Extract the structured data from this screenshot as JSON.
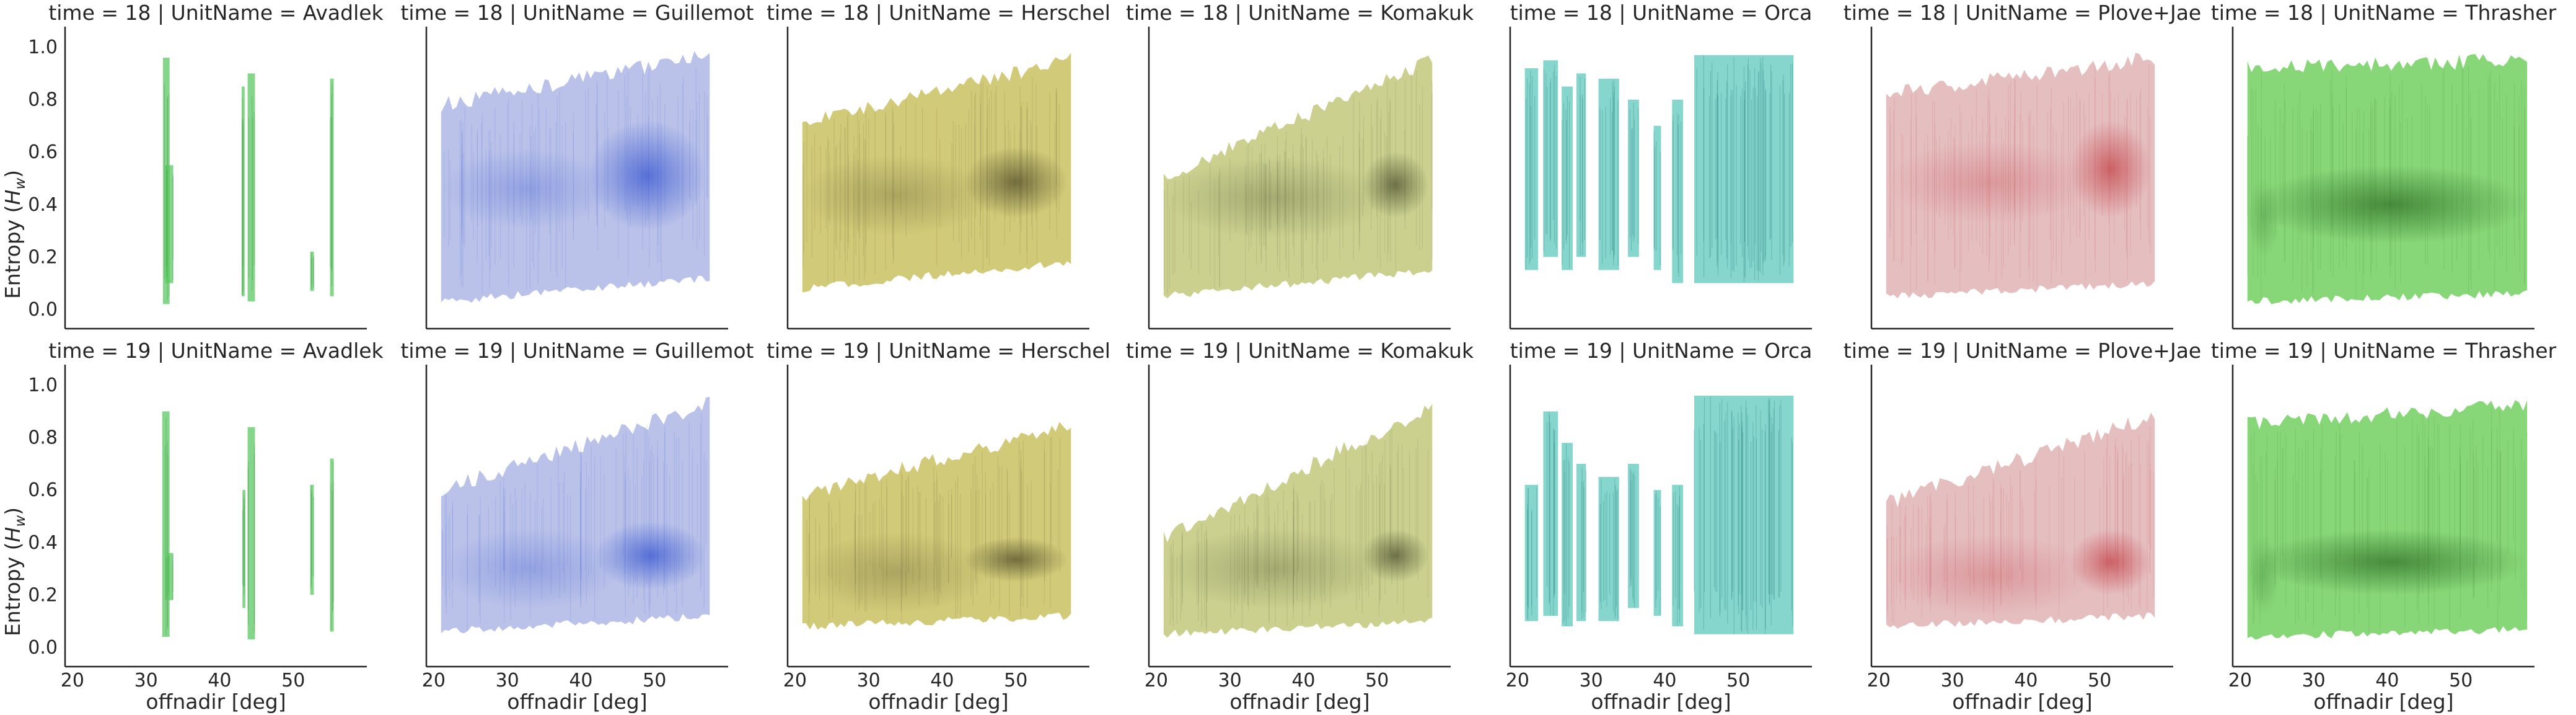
{
  "chart_data": {
    "type": "scatter",
    "layout": "facet-grid",
    "row_variable": "time",
    "col_variable": "UnitName",
    "xlabel": "offnadir [deg]",
    "ylabel_prefix": "Entropy (",
    "ylabel_symbol": "H",
    "ylabel_sub": "w",
    "ylabel_suffix": ")",
    "x_ticks": [
      "20",
      "30",
      "40",
      "50"
    ],
    "y_ticks": [
      "0.0",
      "0.2",
      "0.4",
      "0.6",
      "0.8",
      "1.0"
    ],
    "xlim": [
      19,
      60
    ],
    "ylim": [
      -0.05,
      1.05
    ],
    "grid": false,
    "rows": [
      {
        "time": 18,
        "titles": [
          "time = 18 | UnitName = Avadlek",
          "time = 18 | UnitName = Guillemot",
          "time = 18 | UnitName = Herschel",
          "time = 18 | UnitName = Komakuk",
          "time = 18 | UnitName = Orca",
          "time = 18 | UnitName = Plove+Jae",
          "time = 18 | UnitName = Thrasher"
        ]
      },
      {
        "time": 19,
        "titles": [
          "time = 19 | UnitName = Avadlek",
          "time = 19 | UnitName = Guillemot",
          "time = 19 | UnitName = Herschel",
          "time = 19 | UnitName = Komakuk",
          "time = 19 | UnitName = Orca",
          "time = 19 | UnitName = Plove+Jae",
          "time = 19 | UnitName = Thrasher"
        ]
      }
    ],
    "units": [
      {
        "name": "Avadlek",
        "color": "#5cc863",
        "dark": "#2e8a35",
        "series": [
          {
            "time": 18,
            "bands": [
              [
                32.3,
                33.2,
                0.02,
                0.96
              ],
              [
                32.6,
                33.7,
                0.1,
                0.55
              ],
              [
                43.0,
                43.4,
                0.05,
                0.85
              ],
              [
                43.8,
                44.8,
                0.03,
                0.9
              ],
              [
                52.3,
                52.8,
                0.07,
                0.22
              ],
              [
                55.0,
                55.5,
                0.05,
                0.88
              ]
            ]
          },
          {
            "time": 19,
            "bands": [
              [
                32.2,
                33.2,
                0.04,
                0.9
              ],
              [
                32.8,
                33.7,
                0.18,
                0.36
              ],
              [
                43.1,
                43.5,
                0.15,
                0.6
              ],
              [
                43.8,
                44.8,
                0.03,
                0.84
              ],
              [
                52.3,
                52.8,
                0.2,
                0.62
              ],
              [
                55.0,
                55.5,
                0.06,
                0.72
              ]
            ]
          }
        ]
      },
      {
        "name": "Guillemot",
        "color": "#b4bde7",
        "dark": "#2f4fcf",
        "series": [
          {
            "time": 18,
            "range": [
              21,
              57.5
            ],
            "upper": [
              0.78,
              0.97
            ],
            "lower": [
              0.03,
              0.12
            ],
            "core": [
              41,
              57,
              0.3,
              0.72
            ]
          },
          {
            "time": 19,
            "range": [
              21,
              57.5
            ],
            "upper": [
              0.6,
              0.93
            ],
            "lower": [
              0.06,
              0.12
            ],
            "core": [
              42,
              57,
              0.22,
              0.48
            ]
          }
        ]
      },
      {
        "name": "Herschel",
        "color": "#cdc66d",
        "dark": "#4b4626",
        "series": [
          {
            "time": 18,
            "range": [
              21,
              57.5
            ],
            "upper": [
              0.72,
              0.95
            ],
            "lower": [
              0.08,
              0.18
            ],
            "core": [
              43,
              57,
              0.35,
              0.62
            ]
          },
          {
            "time": 19,
            "range": [
              21,
              57.5
            ],
            "upper": [
              0.58,
              0.85
            ],
            "lower": [
              0.08,
              0.12
            ],
            "core": [
              43,
              57,
              0.25,
              0.42
            ]
          }
        ]
      },
      {
        "name": "Komakuk",
        "color": "#c7cc86",
        "dark": "#444a2a",
        "series": [
          {
            "time": 18,
            "range": [
              21,
              57.5
            ],
            "upper": [
              0.5,
              0.95
            ],
            "lower": [
              0.05,
              0.15
            ],
            "core": [
              48,
              57,
              0.35,
              0.6
            ]
          },
          {
            "time": 19,
            "range": [
              21,
              57.5
            ],
            "upper": [
              0.42,
              0.92
            ],
            "lower": [
              0.05,
              0.1
            ],
            "core": [
              48,
              57,
              0.25,
              0.45
            ]
          }
        ]
      },
      {
        "name": "Orca",
        "color": "#5fc8be",
        "dark": "#1f7d75",
        "series": [
          {
            "time": 18,
            "bands": [
              [
                21,
                22.8,
                0.15,
                0.92
              ],
              [
                23.5,
                25.5,
                0.2,
                0.95
              ],
              [
                26.0,
                27.5,
                0.15,
                0.85
              ],
              [
                28.0,
                29.3,
                0.2,
                0.9
              ],
              [
                31.0,
                33.8,
                0.15,
                0.88
              ],
              [
                35.0,
                36.5,
                0.2,
                0.8
              ],
              [
                38.5,
                39.5,
                0.15,
                0.7
              ],
              [
                41.0,
                42.5,
                0.1,
                0.8
              ],
              [
                44.0,
                57.5,
                0.1,
                0.97
              ]
            ]
          },
          {
            "time": 19,
            "bands": [
              [
                21,
                22.8,
                0.1,
                0.62
              ],
              [
                23.5,
                25.5,
                0.12,
                0.9
              ],
              [
                26.0,
                27.5,
                0.08,
                0.78
              ],
              [
                28.0,
                29.3,
                0.1,
                0.7
              ],
              [
                31.0,
                33.8,
                0.1,
                0.65
              ],
              [
                35.0,
                36.5,
                0.15,
                0.7
              ],
              [
                38.5,
                39.5,
                0.12,
                0.6
              ],
              [
                41.0,
                42.5,
                0.08,
                0.62
              ],
              [
                44.0,
                57.5,
                0.05,
                0.96
              ]
            ]
          }
        ]
      },
      {
        "name": "Plove+Jae",
        "color": "#e3b9bb",
        "dark": "#c13b40",
        "series": [
          {
            "time": 18,
            "range": [
              21,
              57.5
            ],
            "upper": [
              0.82,
              0.96
            ],
            "lower": [
              0.05,
              0.1
            ],
            "core": [
              46,
              57,
              0.35,
              0.72
            ]
          },
          {
            "time": 19,
            "range": [
              21,
              57.5
            ],
            "upper": [
              0.55,
              0.88
            ],
            "lower": [
              0.08,
              0.12
            ],
            "core": [
              46,
              57,
              0.2,
              0.45
            ]
          }
        ]
      },
      {
        "name": "Thrasher",
        "color": "#7dd46c",
        "dark": "#2c6b22",
        "series": [
          {
            "time": 18,
            "range": [
              21,
              59
            ],
            "upper": [
              0.92,
              0.95
            ],
            "lower": [
              0.03,
              0.06
            ],
            "core": [
              22,
              59,
              0.25,
              0.55
            ]
          },
          {
            "time": 19,
            "range": [
              21,
              59
            ],
            "upper": [
              0.85,
              0.93
            ],
            "lower": [
              0.04,
              0.07
            ],
            "core": [
              22,
              59,
              0.2,
              0.45
            ]
          }
        ]
      }
    ]
  }
}
